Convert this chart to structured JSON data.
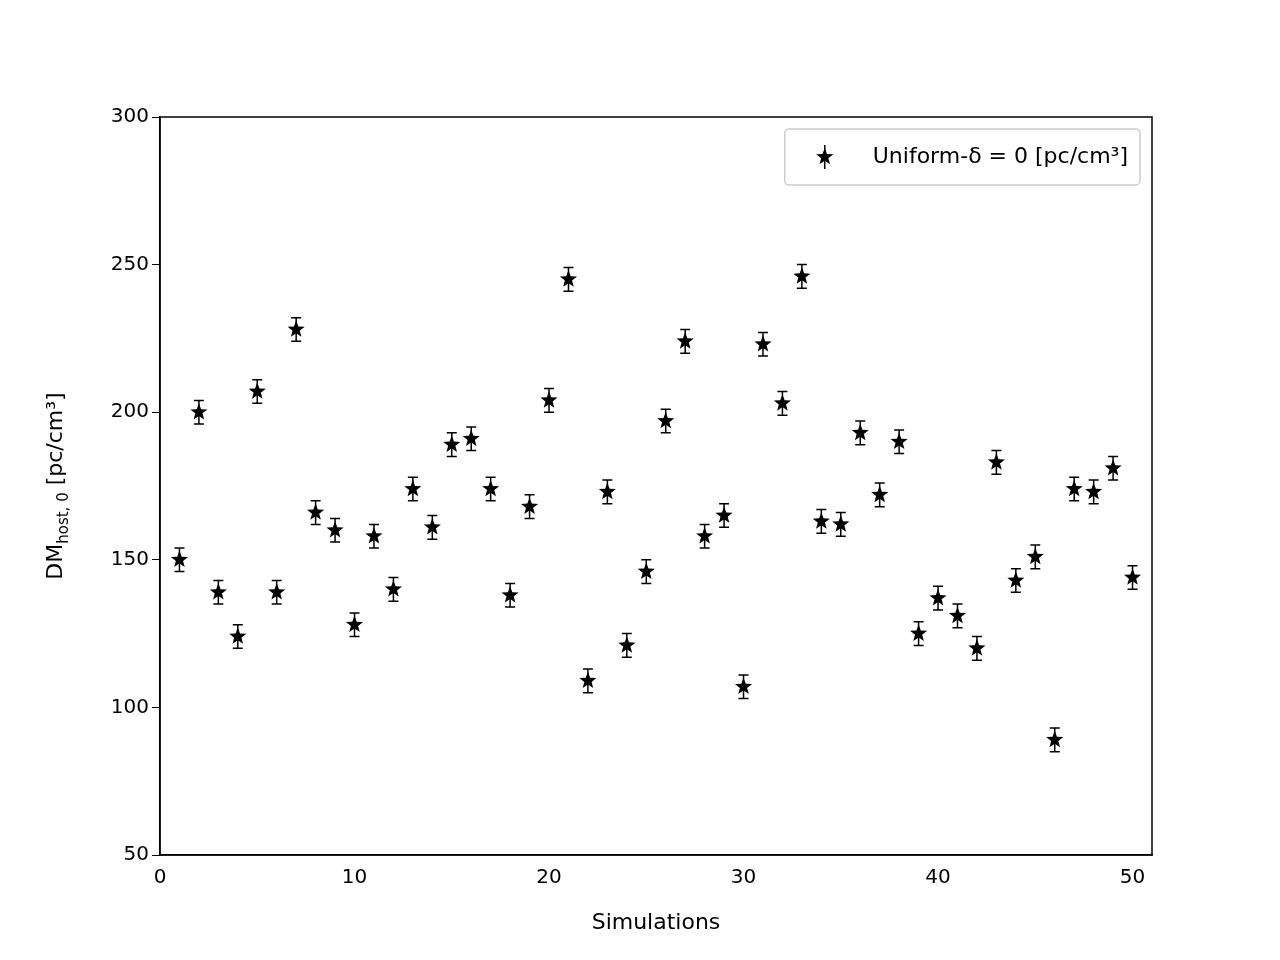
{
  "chart_data": {
    "type": "scatter",
    "xlabel": "Simulations",
    "ylabel": "DM$_{host, 0}$ [pc/cm³]",
    "x": [
      1,
      2,
      3,
      4,
      5,
      6,
      7,
      8,
      9,
      10,
      11,
      12,
      13,
      14,
      15,
      16,
      17,
      18,
      19,
      20,
      21,
      22,
      23,
      24,
      25,
      26,
      27,
      28,
      29,
      30,
      31,
      32,
      33,
      34,
      35,
      36,
      37,
      38,
      39,
      40,
      41,
      42,
      43,
      44,
      45,
      46,
      47,
      48,
      49,
      50
    ],
    "series": [
      {
        "name": "Uniform-δ = 0 [pc/cm³]",
        "color": "#000000",
        "values": [
          150,
          200,
          139,
          124,
          207,
          139,
          228,
          166,
          160,
          128,
          158,
          140,
          174,
          161,
          189,
          191,
          174,
          138,
          168,
          204,
          245,
          109,
          173,
          121,
          146,
          197,
          224,
          158,
          165,
          107,
          223,
          203,
          246,
          163,
          162,
          193,
          172,
          190,
          125,
          137,
          131,
          120,
          183,
          143,
          151,
          89,
          174,
          173,
          181,
          144
        ],
        "errors": [
          4,
          4,
          4,
          4,
          4,
          4,
          4,
          4,
          4,
          4,
          4,
          4,
          4,
          4,
          4,
          4,
          4,
          4,
          4,
          4,
          4,
          4,
          4,
          4,
          4,
          4,
          4,
          4,
          4,
          4,
          4,
          4,
          4,
          4,
          4,
          4,
          4,
          4,
          4,
          4,
          4,
          4,
          4,
          4,
          4,
          4,
          4,
          4,
          4,
          4
        ]
      }
    ],
    "xlim": [
      0,
      51
    ],
    "xticks": [
      0,
      10,
      20,
      30,
      40,
      50
    ],
    "ylim": [
      50,
      300
    ],
    "yticks": [
      50,
      100,
      150,
      200,
      250,
      300
    ],
    "grid": false,
    "legend": "top right",
    "marker": "star"
  }
}
